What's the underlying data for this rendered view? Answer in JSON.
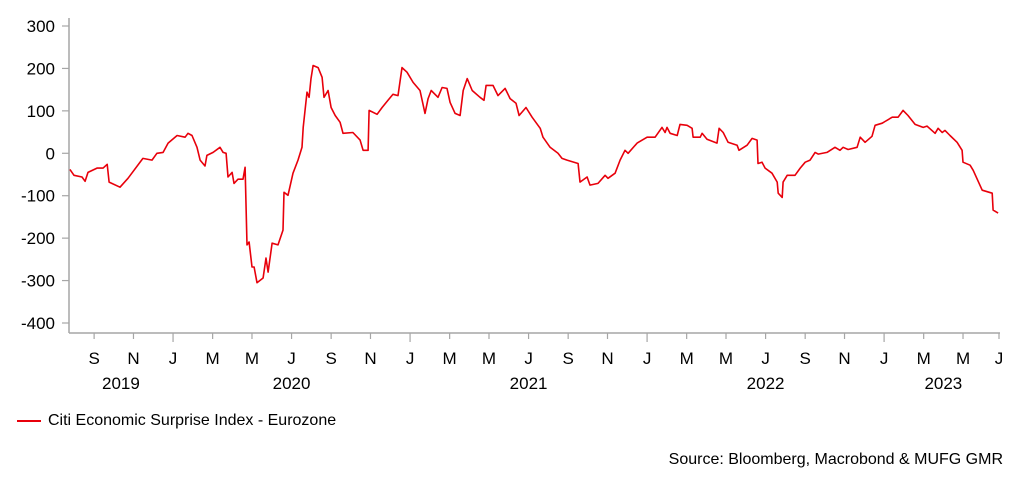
{
  "chart_data": {
    "type": "line",
    "title": "",
    "xlabel": "",
    "ylabel": "",
    "ylim": [
      -400,
      300
    ],
    "xlim": [
      2019.561,
      2023.489
    ],
    "yticks": [
      300,
      200,
      100,
      0,
      -100,
      -200,
      -300,
      -400
    ],
    "yticks_labels": [
      "300",
      "200",
      "100",
      "0",
      "-100",
      "-200",
      "-300",
      "-400"
    ],
    "xticks": [
      {
        "t": 2019.667,
        "label": "S"
      },
      {
        "t": 2019.833,
        "label": "N"
      },
      {
        "t": 2020.0,
        "label": "J"
      },
      {
        "t": 2020.167,
        "label": "M"
      },
      {
        "t": 2020.333,
        "label": "M"
      },
      {
        "t": 2020.5,
        "label": "J"
      },
      {
        "t": 2020.667,
        "label": "S"
      },
      {
        "t": 2020.833,
        "label": "N"
      },
      {
        "t": 2021.0,
        "label": "J"
      },
      {
        "t": 2021.167,
        "label": "M"
      },
      {
        "t": 2021.333,
        "label": "M"
      },
      {
        "t": 2021.5,
        "label": "J"
      },
      {
        "t": 2021.667,
        "label": "S"
      },
      {
        "t": 2021.833,
        "label": "N"
      },
      {
        "t": 2022.0,
        "label": "J"
      },
      {
        "t": 2022.167,
        "label": "M"
      },
      {
        "t": 2022.333,
        "label": "M"
      },
      {
        "t": 2022.5,
        "label": "J"
      },
      {
        "t": 2022.667,
        "label": "S"
      },
      {
        "t": 2022.833,
        "label": "N"
      },
      {
        "t": 2023.0,
        "label": "J"
      },
      {
        "t": 2023.167,
        "label": "M"
      },
      {
        "t": 2023.333,
        "label": "M"
      },
      {
        "t": 2023.5,
        "label": "J"
      }
    ],
    "year_labels": [
      {
        "t": 2019.78,
        "label": "2019"
      },
      {
        "t": 2020.5,
        "label": "2020"
      },
      {
        "t": 2021.5,
        "label": "2021"
      },
      {
        "t": 2022.5,
        "label": "2022"
      },
      {
        "t": 2023.25,
        "label": "2023"
      }
    ],
    "grid": false,
    "legend_position": "bottom-left",
    "series": [
      {
        "name": "Citi Economic Surprise Index - Eurozone",
        "color": "#e8000b",
        "points": [
          [
            2019.565,
            -38
          ],
          [
            2019.582,
            -52
          ],
          [
            2019.616,
            -56
          ],
          [
            2019.629,
            -66
          ],
          [
            2019.641,
            -45
          ],
          [
            2019.679,
            -35
          ],
          [
            2019.705,
            -35
          ],
          [
            2019.722,
            -26
          ],
          [
            2019.73,
            -68
          ],
          [
            2019.776,
            -80
          ],
          [
            2019.81,
            -59
          ],
          [
            2019.873,
            -12
          ],
          [
            2019.911,
            -16
          ],
          [
            2019.932,
            0
          ],
          [
            2019.958,
            2
          ],
          [
            2019.979,
            24
          ],
          [
            2020.017,
            42
          ],
          [
            2020.051,
            38
          ],
          [
            2020.063,
            47
          ],
          [
            2020.08,
            42
          ],
          [
            2020.101,
            14
          ],
          [
            2020.114,
            -16
          ],
          [
            2020.135,
            -30
          ],
          [
            2020.143,
            -5
          ],
          [
            2020.169,
            2
          ],
          [
            2020.198,
            14
          ],
          [
            2020.211,
            2
          ],
          [
            2020.224,
            0
          ],
          [
            2020.232,
            -56
          ],
          [
            2020.249,
            -45
          ],
          [
            2020.257,
            -71
          ],
          [
            2020.274,
            -61
          ],
          [
            2020.295,
            -61
          ],
          [
            2020.304,
            -33
          ],
          [
            2020.312,
            -216
          ],
          [
            2020.321,
            -209
          ],
          [
            2020.333,
            -268
          ],
          [
            2020.342,
            -268
          ],
          [
            2020.354,
            -305
          ],
          [
            2020.38,
            -294
          ],
          [
            2020.392,
            -247
          ],
          [
            2020.401,
            -280
          ],
          [
            2020.418,
            -212
          ],
          [
            2020.443,
            -216
          ],
          [
            2020.464,
            -181
          ],
          [
            2020.468,
            -92
          ],
          [
            2020.485,
            -99
          ],
          [
            2020.506,
            -47
          ],
          [
            2020.527,
            -16
          ],
          [
            2020.544,
            14
          ],
          [
            2020.549,
            61
          ],
          [
            2020.565,
            144
          ],
          [
            2020.574,
            132
          ],
          [
            2020.582,
            176
          ],
          [
            2020.591,
            207
          ],
          [
            2020.612,
            202
          ],
          [
            2020.629,
            179
          ],
          [
            2020.637,
            132
          ],
          [
            2020.654,
            148
          ],
          [
            2020.667,
            108
          ],
          [
            2020.684,
            89
          ],
          [
            2020.705,
            73
          ],
          [
            2020.717,
            47
          ],
          [
            2020.759,
            49
          ],
          [
            2020.789,
            31
          ],
          [
            2020.802,
            7
          ],
          [
            2020.823,
            7
          ],
          [
            2020.827,
            101
          ],
          [
            2020.861,
            92
          ],
          [
            2020.882,
            108
          ],
          [
            2020.907,
            125
          ],
          [
            2020.928,
            139
          ],
          [
            2020.949,
            136
          ],
          [
            2020.966,
            202
          ],
          [
            2020.987,
            191
          ],
          [
            2021.013,
            167
          ],
          [
            2021.042,
            148
          ],
          [
            2021.063,
            94
          ],
          [
            2021.076,
            129
          ],
          [
            2021.089,
            148
          ],
          [
            2021.118,
            132
          ],
          [
            2021.135,
            155
          ],
          [
            2021.156,
            153
          ],
          [
            2021.169,
            120
          ],
          [
            2021.19,
            94
          ],
          [
            2021.211,
            89
          ],
          [
            2021.224,
            148
          ],
          [
            2021.241,
            176
          ],
          [
            2021.262,
            148
          ],
          [
            2021.295,
            132
          ],
          [
            2021.312,
            125
          ],
          [
            2021.321,
            160
          ],
          [
            2021.35,
            160
          ],
          [
            2021.371,
            136
          ],
          [
            2021.401,
            153
          ],
          [
            2021.422,
            129
          ],
          [
            2021.447,
            118
          ],
          [
            2021.46,
            89
          ],
          [
            2021.489,
            108
          ],
          [
            2021.515,
            85
          ],
          [
            2021.549,
            59
          ],
          [
            2021.561,
            38
          ],
          [
            2021.591,
            14
          ],
          [
            2021.624,
            0
          ],
          [
            2021.641,
            -12
          ],
          [
            2021.662,
            -16
          ],
          [
            2021.709,
            -24
          ],
          [
            2021.717,
            -68
          ],
          [
            2021.747,
            -56
          ],
          [
            2021.759,
            -75
          ],
          [
            2021.793,
            -71
          ],
          [
            2021.823,
            -52
          ],
          [
            2021.835,
            -59
          ],
          [
            2021.865,
            -47
          ],
          [
            2021.886,
            -16
          ],
          [
            2021.907,
            7
          ],
          [
            2021.92,
            0
          ],
          [
            2021.958,
            24
          ],
          [
            2022.0,
            38
          ],
          [
            2022.034,
            38
          ],
          [
            2022.063,
            61
          ],
          [
            2022.076,
            49
          ],
          [
            2022.084,
            61
          ],
          [
            2022.097,
            47
          ],
          [
            2022.127,
            42
          ],
          [
            2022.139,
            68
          ],
          [
            2022.169,
            66
          ],
          [
            2022.19,
            59
          ],
          [
            2022.194,
            38
          ],
          [
            2022.224,
            38
          ],
          [
            2022.232,
            47
          ],
          [
            2022.253,
            33
          ],
          [
            2022.295,
            24
          ],
          [
            2022.304,
            59
          ],
          [
            2022.321,
            49
          ],
          [
            2022.342,
            26
          ],
          [
            2022.38,
            19
          ],
          [
            2022.388,
            7
          ],
          [
            2022.422,
            19
          ],
          [
            2022.443,
            35
          ],
          [
            2022.464,
            31
          ],
          [
            2022.468,
            -24
          ],
          [
            2022.485,
            -21
          ],
          [
            2022.498,
            -35
          ],
          [
            2022.527,
            -47
          ],
          [
            2022.549,
            -68
          ],
          [
            2022.553,
            -94
          ],
          [
            2022.57,
            -104
          ],
          [
            2022.574,
            -68
          ],
          [
            2022.591,
            -52
          ],
          [
            2022.624,
            -52
          ],
          [
            2022.646,
            -35
          ],
          [
            2022.667,
            -21
          ],
          [
            2022.688,
            -16
          ],
          [
            2022.709,
            2
          ],
          [
            2022.722,
            -2
          ],
          [
            2022.759,
            2
          ],
          [
            2022.793,
            14
          ],
          [
            2022.814,
            7
          ],
          [
            2022.827,
            14
          ],
          [
            2022.848,
            9
          ],
          [
            2022.886,
            14
          ],
          [
            2022.899,
            38
          ],
          [
            2022.92,
            26
          ],
          [
            2022.949,
            40
          ],
          [
            2022.962,
            66
          ],
          [
            2022.992,
            71
          ],
          [
            2023.004,
            75
          ],
          [
            2023.034,
            85
          ],
          [
            2023.059,
            85
          ],
          [
            2023.08,
            101
          ],
          [
            2023.101,
            89
          ],
          [
            2023.131,
            68
          ],
          [
            2023.165,
            61
          ],
          [
            2023.181,
            64
          ],
          [
            2023.215,
            47
          ],
          [
            2023.228,
            59
          ],
          [
            2023.245,
            49
          ],
          [
            2023.257,
            54
          ],
          [
            2023.278,
            42
          ],
          [
            2023.308,
            26
          ],
          [
            2023.329,
            7
          ],
          [
            2023.333,
            -21
          ],
          [
            2023.363,
            -28
          ],
          [
            2023.376,
            -40
          ],
          [
            2023.414,
            -87
          ],
          [
            2023.456,
            -94
          ],
          [
            2023.46,
            -134
          ],
          [
            2023.481,
            -141
          ]
        ]
      }
    ]
  },
  "legend": {
    "label": "Citi Economic Surprise Index - Eurozone"
  },
  "source": "Source: Bloomberg, Macrobond & MUFG GMR"
}
